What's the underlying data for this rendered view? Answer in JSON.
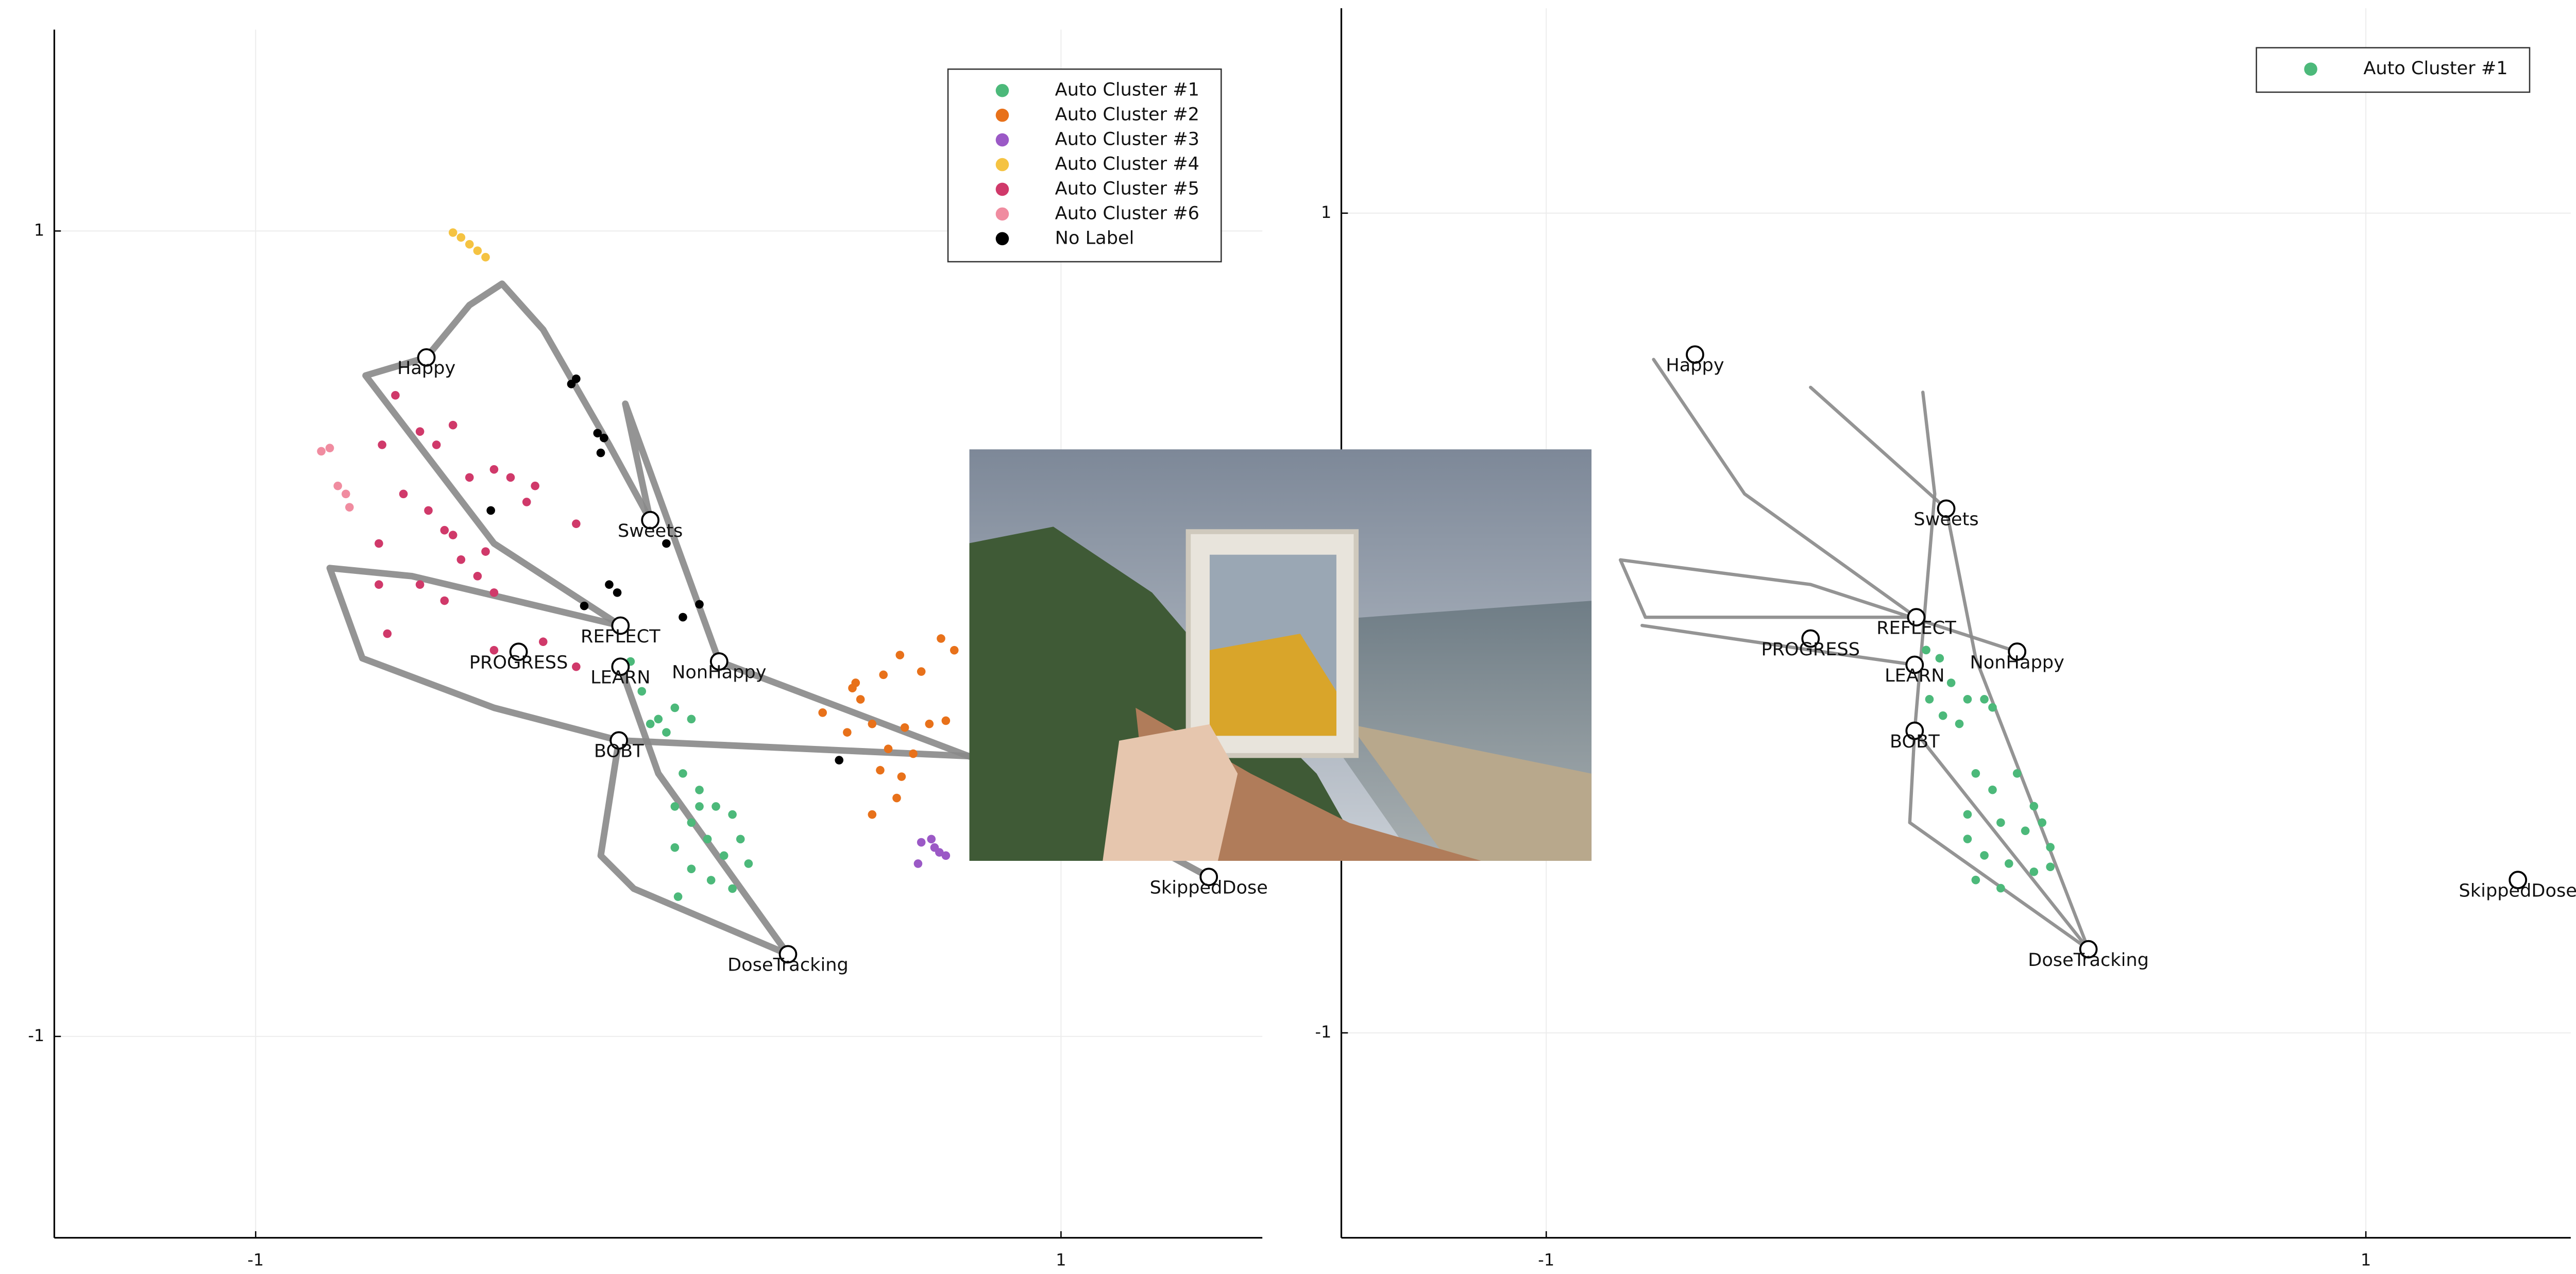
{
  "chart_data": [
    {
      "type": "scatter",
      "xlim": [
        -1.5,
        1.5
      ],
      "ylim": [
        -1.5,
        1.5
      ],
      "xticks": [
        -1,
        1
      ],
      "yticks": [
        -1,
        1
      ],
      "grid": true,
      "legend": "top-right",
      "series": [
        {
          "name": "Auto Cluster #1",
          "color": "#4cb97a",
          "x": [
            -0.069,
            -0.041,
            0.0,
            0.041,
            0.082,
            0.02,
            -0.02,
            0.061,
            0.102,
            0.143,
            0.184,
            0.082,
            0.122,
            0.163,
            0.041,
            0.082,
            0.131,
            0.184,
            0.049,
            0.204,
            0.224,
            0.102,
            0.041
          ],
          "y": [
            -0.069,
            -0.143,
            -0.212,
            -0.184,
            -0.212,
            -0.245,
            -0.224,
            -0.347,
            -0.388,
            -0.429,
            -0.449,
            -0.469,
            -0.51,
            -0.551,
            -0.531,
            -0.584,
            -0.612,
            -0.633,
            -0.653,
            -0.51,
            -0.571,
            -0.429,
            -0.429
          ]
        },
        {
          "name": "Auto Cluster #2",
          "color": "#e8711a",
          "x": [
            0.482,
            0.502,
            0.559,
            0.6,
            0.653,
            0.702,
            0.735,
            0.408,
            0.469,
            0.531,
            0.612,
            0.673,
            0.714,
            0.571,
            0.633,
            0.551,
            0.604,
            0.531,
            0.592,
            0.49
          ],
          "y": [
            -0.135,
            -0.163,
            -0.102,
            -0.053,
            -0.094,
            -0.012,
            -0.041,
            -0.196,
            -0.245,
            -0.224,
            -0.233,
            -0.224,
            -0.216,
            -0.286,
            -0.298,
            -0.339,
            -0.355,
            -0.449,
            -0.408,
            -0.122
          ]
        },
        {
          "name": "Auto Cluster #3",
          "color": "#9b59c6",
          "x": [
            0.653,
            0.678,
            0.698,
            0.714,
            0.645,
            0.686
          ],
          "y": [
            -0.518,
            -0.51,
            -0.543,
            -0.551,
            -0.571,
            -0.531
          ]
        },
        {
          "name": "Auto Cluster #4",
          "color": "#f5c342",
          "x": [
            -0.51,
            -0.49,
            -0.469,
            -0.449,
            -0.429
          ],
          "y": [
            0.996,
            0.984,
            0.967,
            0.951,
            0.935
          ]
        },
        {
          "name": "Auto Cluster #5",
          "color": "#d0396a",
          "x": [
            -0.653,
            -0.686,
            -0.592,
            -0.551,
            -0.51,
            -0.469,
            -0.408,
            -0.367,
            -0.306,
            -0.327,
            -0.204,
            -0.633,
            -0.694,
            -0.571,
            -0.531,
            -0.49,
            -0.449,
            -0.408,
            -0.694,
            -0.592,
            -0.531,
            -0.673,
            -0.408,
            -0.286,
            -0.204,
            -0.51,
            -0.429
          ],
          "y": [
            0.592,
            0.469,
            0.502,
            0.469,
            0.518,
            0.388,
            0.408,
            0.388,
            0.367,
            0.327,
            0.273,
            0.347,
            0.224,
            0.306,
            0.257,
            0.184,
            0.143,
            0.102,
            0.122,
            0.122,
            0.082,
            0.0,
            -0.041,
            -0.02,
            -0.082,
            0.245,
            0.204
          ]
        },
        {
          "name": "Auto Cluster #6",
          "color": "#f08ca0",
          "x": [
            -0.837,
            -0.816,
            -0.796,
            -0.776,
            -0.767
          ],
          "y": [
            0.453,
            0.461,
            0.367,
            0.347,
            0.314
          ]
        },
        {
          "name": "No Label",
          "color": "#000000",
          "x": [
            -0.216,
            -0.204,
            -0.151,
            -0.135,
            -0.143,
            -0.416,
            -0.122,
            -0.102,
            -0.184,
            0.02,
            0.061,
            0.102,
            0.449
          ],
          "y": [
            0.62,
            0.633,
            0.498,
            0.486,
            0.449,
            0.306,
            0.122,
            0.102,
            0.069,
            0.224,
            0.041,
            0.073,
            -0.314
          ]
        }
      ],
      "nodes": {
        "labels": [
          "Happy",
          "Sweets",
          "REFLECT",
          "PROGRESS",
          "LEARN",
          "NonHappy",
          "BOBT",
          "DoseTracking",
          "SkippedDose"
        ],
        "x": [
          -0.576,
          -0.02,
          -0.094,
          -0.347,
          -0.094,
          0.151,
          -0.098,
          0.322,
          1.367
        ],
        "y": [
          0.686,
          0.282,
          0.02,
          -0.045,
          -0.082,
          -0.069,
          -0.265,
          -0.796,
          -0.604
        ]
      },
      "edges": [
        {
          "x": [
            -0.576,
            -0.469,
            -0.388,
            -0.286,
            -0.122,
            -0.02
          ],
          "y": [
            0.686,
            0.816,
            0.869,
            0.755,
            0.469,
            0.282
          ]
        },
        {
          "x": [
            -0.098,
            -0.408,
            -0.735,
            -0.816,
            -0.612,
            -0.094
          ],
          "y": [
            -0.265,
            -0.184,
            -0.061,
            0.163,
            0.143,
            0.02
          ]
        },
        {
          "x": [
            -0.098,
            0.816,
            1.367
          ],
          "y": [
            -0.265,
            -0.306,
            -0.604
          ]
        },
        {
          "x": [
            -0.098,
            -0.143,
            -0.061,
            0.322
          ],
          "y": [
            -0.265,
            -0.551,
            -0.633,
            -0.796
          ]
        },
        {
          "x": [
            -0.576,
            -0.727,
            -0.408,
            -0.094
          ],
          "y": [
            0.686,
            0.641,
            0.224,
            0.02
          ]
        },
        {
          "x": [
            -0.02,
            -0.082,
            0.151,
            0.776
          ],
          "y": [
            0.282,
            0.571,
            -0.069,
            -0.306
          ]
        },
        {
          "x": [
            -0.094,
            0.0,
            0.322
          ],
          "y": [
            -0.082,
            -0.347,
            -0.796
          ]
        }
      ]
    },
    {
      "type": "scatter",
      "xlim": [
        -1.5,
        1.5
      ],
      "ylim": [
        -1.5,
        1.5
      ],
      "xticks": [
        -1,
        1
      ],
      "yticks": [
        -1,
        1
      ],
      "grid": true,
      "legend": "top-right",
      "series": [
        {
          "name": "Auto Cluster #1",
          "color": "#4cb97a",
          "x": [
            -0.073,
            -0.04,
            -0.012,
            -0.065,
            -0.032,
            0.028,
            0.069,
            0.089,
            0.008,
            0.048,
            0.089,
            0.149,
            0.19,
            0.028,
            0.109,
            0.169,
            0.21,
            0.23,
            0.028,
            0.069,
            0.129,
            0.19,
            0.048,
            0.109,
            0.23
          ],
          "y": [
            -0.066,
            -0.086,
            -0.146,
            -0.186,
            -0.226,
            -0.186,
            -0.186,
            -0.206,
            -0.246,
            -0.367,
            -0.407,
            -0.367,
            -0.447,
            -0.467,
            -0.487,
            -0.507,
            -0.487,
            -0.547,
            -0.527,
            -0.567,
            -0.587,
            -0.607,
            -0.627,
            -0.647,
            -0.595
          ]
        }
      ],
      "nodes": {
        "labels": [
          "Happy",
          "Sweets",
          "REFLECT",
          "PROGRESS",
          "LEARN",
          "NonHappy",
          "BOBT",
          "DoseTracking",
          "SkippedDose"
        ],
        "x": [
          -0.637,
          -0.024,
          -0.097,
          -0.355,
          -0.101,
          0.149,
          -0.101,
          0.323,
          1.371
        ],
        "y": [
          0.655,
          0.279,
          0.014,
          -0.038,
          -0.102,
          -0.07,
          -0.263,
          -0.796,
          -0.627
        ]
      },
      "edges": [
        {
          "x": [
            -0.738,
            -0.516,
            -0.097
          ],
          "y": [
            0.643,
            0.315,
            0.014
          ]
        },
        {
          "x": [
            -0.097,
            -0.758,
            -0.819,
            -0.355,
            0.149
          ],
          "y": [
            0.014,
            0.014,
            0.154,
            0.094,
            -0.07
          ]
        },
        {
          "x": [
            -0.081,
            -0.052,
            -0.101,
            0.323
          ],
          "y": [
            0.563,
            0.315,
            -0.263,
            -0.796
          ]
        },
        {
          "x": [
            -0.355,
            -0.024,
            0.048,
            0.323
          ],
          "y": [
            0.575,
            0.279,
            -0.086,
            -0.796
          ]
        },
        {
          "x": [
            -0.101,
            -0.113,
            0.323
          ],
          "y": [
            -0.263,
            -0.487,
            -0.796
          ]
        },
        {
          "x": [
            -0.766,
            -0.355,
            -0.101
          ],
          "y": [
            -0.006,
            -0.066,
            -0.102
          ]
        }
      ]
    }
  ]
}
